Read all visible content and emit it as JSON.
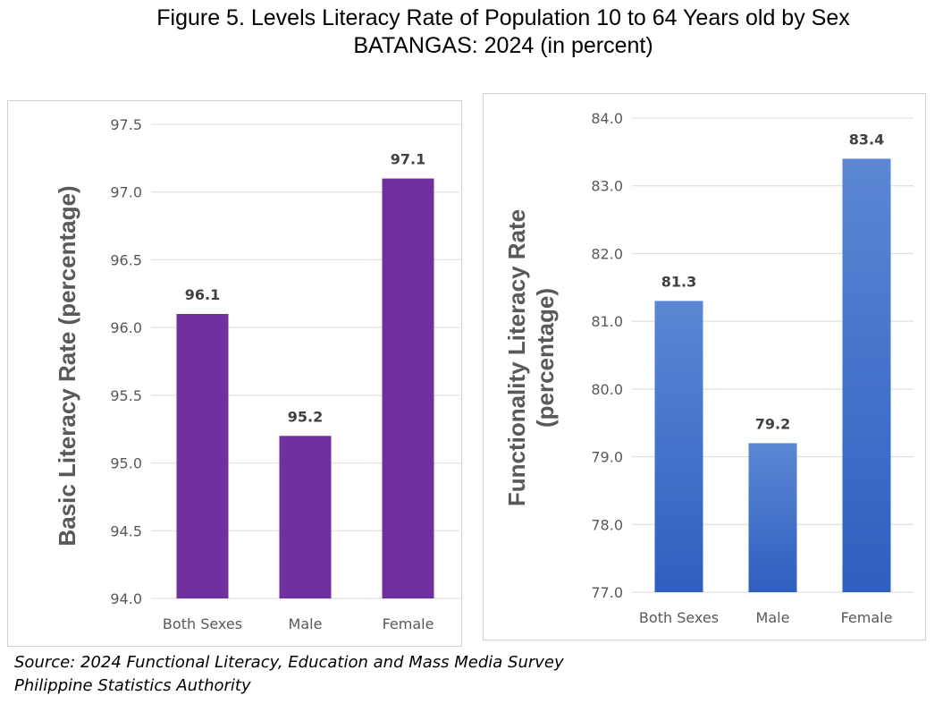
{
  "figure": {
    "title_line1": "Figure 5.  Levels Literacy Rate of Population 10 to 64 Years old by Sex",
    "title_line2": "BATANGAS: 2024 (in percent)"
  },
  "source": {
    "line1": "Source: 2024 Functional Literacy, Education and Mass Media Survey",
    "line2": "Philippine Statistics Authority"
  },
  "chart_data": [
    {
      "type": "bar",
      "categories": [
        "Both Sexes",
        "Male",
        "Female"
      ],
      "values": [
        96.1,
        95.2,
        97.1
      ],
      "value_labels": [
        "96.1",
        "95.2",
        "97.1"
      ],
      "ylabel_lines": [
        "Basic Literacy Rate (percentage)"
      ],
      "ylim": [
        94.0,
        97.5
      ],
      "yticks": [
        "94.0",
        "94.5",
        "95.0",
        "95.5",
        "96.0",
        "96.5",
        "97.0",
        "97.5"
      ],
      "grid": true,
      "color": "#7030a0"
    },
    {
      "type": "bar",
      "categories": [
        "Both Sexes",
        "Male",
        "Female"
      ],
      "values": [
        81.3,
        79.2,
        83.4
      ],
      "value_labels": [
        "81.3",
        "79.2",
        "83.4"
      ],
      "ylabel_lines": [
        "Functionality Literacy Rate",
        "(percentage)"
      ],
      "ylim": [
        77.0,
        84.0
      ],
      "yticks": [
        "77.0",
        "78.0",
        "79.0",
        "80.0",
        "81.0",
        "82.0",
        "83.0",
        "84.0"
      ],
      "grid": true,
      "color": "#3f72c8"
    }
  ]
}
